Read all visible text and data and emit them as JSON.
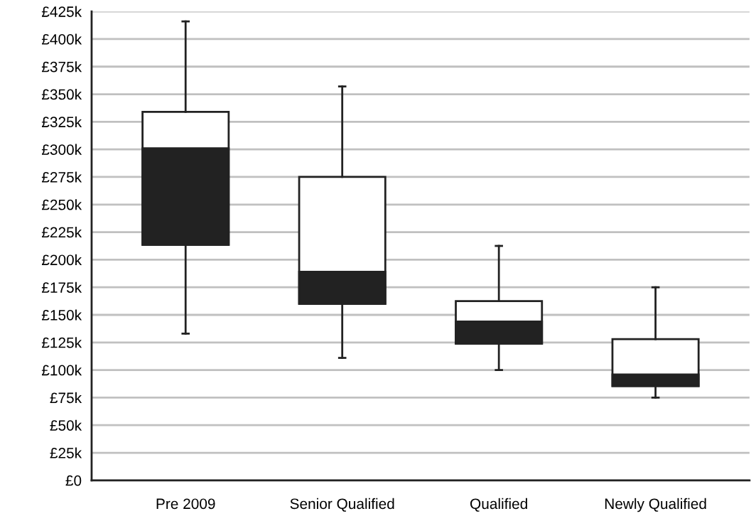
{
  "chart_data": {
    "type": "box",
    "categories": [
      "Pre 2009",
      "Senior Qualified",
      "Qualified",
      "Newly Qualified"
    ],
    "series": [
      {
        "color": "#222222",
        "boxes": [
          {
            "low": 133000,
            "q1": 213500,
            "median": 301000,
            "q3": 334000,
            "high": 416000
          },
          {
            "low": 111000,
            "q1": 160000,
            "median": 189000,
            "q3": 275000,
            "high": 357000
          },
          {
            "low": 100000,
            "q1": 124000,
            "median": 144000,
            "q3": 162500,
            "high": 212500
          },
          {
            "low": 75000,
            "q1": 85500,
            "median": 96000,
            "q3": 128000,
            "high": 175000
          }
        ]
      }
    ],
    "ylim": [
      0,
      425000
    ],
    "yticks": [
      {
        "value": 0,
        "label": "£0"
      },
      {
        "value": 25000,
        "label": "£25k"
      },
      {
        "value": 50000,
        "label": "£50k"
      },
      {
        "value": 75000,
        "label": "£75k"
      },
      {
        "value": 100000,
        "label": "£100k"
      },
      {
        "value": 125000,
        "label": "£125k"
      },
      {
        "value": 150000,
        "label": "£150k"
      },
      {
        "value": 175000,
        "label": "£175k"
      },
      {
        "value": 200000,
        "label": "£200k"
      },
      {
        "value": 225000,
        "label": "£225k"
      },
      {
        "value": 250000,
        "label": "£250k"
      },
      {
        "value": 275000,
        "label": "£275k"
      },
      {
        "value": 300000,
        "label": "£300k"
      },
      {
        "value": 325000,
        "label": "£325k"
      },
      {
        "value": 350000,
        "label": "£350k"
      },
      {
        "value": 375000,
        "label": "£375k"
      },
      {
        "value": 400000,
        "label": "£400k"
      },
      {
        "value": 425000,
        "label": "£425k"
      }
    ],
    "grid": "y"
  }
}
